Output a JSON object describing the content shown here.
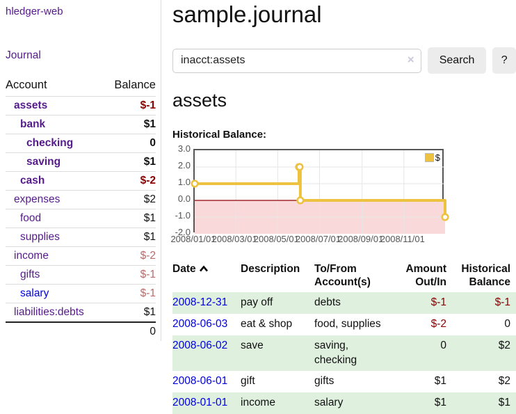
{
  "colors": {
    "accent_purple": "#551a8b",
    "link_blue": "#0000e0",
    "neg_strong": "#8b0000",
    "neg_muted": "#b96a6a",
    "row_green": "#dff0df",
    "chart_line": "#edc240",
    "chart_negative_fill": "#f9d9d9",
    "chart_zero_line": "#900000"
  },
  "sidebar": {
    "app_title": "hledger-web",
    "journal_link": "Journal",
    "accounts": {
      "col_account": "Account",
      "col_balance": "Balance",
      "rows": [
        {
          "name": "assets",
          "level": "1",
          "emph": "bold",
          "link": "visited",
          "balance": "$-1",
          "balance_tone": "neg"
        },
        {
          "name": "bank",
          "level": "2",
          "emph": "bold",
          "link": "visited",
          "balance": "$1",
          "balance_tone": ""
        },
        {
          "name": "checking",
          "level": "3",
          "emph": "bold",
          "link": "visited",
          "balance": "0",
          "balance_tone": ""
        },
        {
          "name": "saving",
          "level": "3",
          "emph": "bold",
          "link": "visited",
          "balance": "$1",
          "balance_tone": ""
        },
        {
          "name": "cash",
          "level": "2",
          "emph": "bold",
          "link": "visited",
          "balance": "$-2",
          "balance_tone": "neg"
        },
        {
          "name": "expenses",
          "level": "1",
          "emph": "",
          "link": "visited",
          "balance": "$2",
          "balance_tone": ""
        },
        {
          "name": "food",
          "level": "2",
          "emph": "",
          "link": "visited",
          "balance": "$1",
          "balance_tone": ""
        },
        {
          "name": "supplies",
          "level": "2",
          "emph": "",
          "link": "visited",
          "balance": "$1",
          "balance_tone": ""
        },
        {
          "name": "income",
          "level": "1",
          "emph": "",
          "link": "visited",
          "balance": "$-2",
          "balance_tone": "negmuted"
        },
        {
          "name": "gifts",
          "level": "2",
          "emph": "",
          "link": "visited",
          "balance": "$-1",
          "balance_tone": "negmuted"
        },
        {
          "name": "salary",
          "level": "2",
          "emph": "",
          "link": "new",
          "balance": "$-1",
          "balance_tone": "negmuted"
        },
        {
          "name": "liabilities:debts",
          "level": "1",
          "emph": "",
          "link": "visited",
          "balance": "$1",
          "balance_tone": ""
        }
      ],
      "total": "0"
    }
  },
  "header": {
    "title": "sample.journal"
  },
  "search": {
    "value": "inacct:assets",
    "clear_icon": "×",
    "button_label": "Search",
    "help_label": "?"
  },
  "account_page": {
    "heading": "assets",
    "chart_title": "Historical Balance:"
  },
  "chart_data": {
    "type": "line",
    "style": "step",
    "title": "Historical Balance:",
    "xlabel": "",
    "ylabel": "",
    "ylim": [
      -2,
      3
    ],
    "x_range": [
      "2008-01-01",
      "2008-12-31"
    ],
    "y_ticks": [
      "3.0",
      "2.0",
      "1.0",
      "0.0",
      "-1.0",
      "-2.0"
    ],
    "x_tick_labels": [
      "2008/01/01",
      "2008/03/01",
      "2008/05/01",
      "2008/07/01",
      "2008/09/01",
      "2008/11/01"
    ],
    "grid": true,
    "legend_position": "top-right",
    "negative_region_color": "#f9d9d9",
    "zero_line_color": "#900000",
    "series": [
      {
        "name": "$",
        "color": "#edc240",
        "points": [
          [
            "2008-01-01",
            1
          ],
          [
            "2008-06-01",
            2
          ],
          [
            "2008-06-02",
            2
          ],
          [
            "2008-06-03",
            0
          ],
          [
            "2008-12-31",
            -1
          ]
        ]
      }
    ]
  },
  "register": {
    "columns": {
      "date": "Date",
      "description": "Description",
      "account": "To/From Account(s)",
      "amount": "Amount Out/In",
      "balance": "Historical Balance"
    },
    "rows": [
      {
        "date": "2008-12-31",
        "description": "pay off",
        "account": "debts",
        "amount": "$-1",
        "amount_tone": "neg",
        "balance": "$-1",
        "balance_tone": "neg"
      },
      {
        "date": "2008-06-03",
        "description": "eat & shop",
        "account": "food, supplies",
        "amount": "$-2",
        "amount_tone": "neg",
        "balance": "0",
        "balance_tone": ""
      },
      {
        "date": "2008-06-02",
        "description": "save",
        "account": "saving, checking",
        "amount": "0",
        "amount_tone": "",
        "balance": "$2",
        "balance_tone": ""
      },
      {
        "date": "2008-06-01",
        "description": "gift",
        "account": "gifts",
        "amount": "$1",
        "amount_tone": "",
        "balance": "$2",
        "balance_tone": ""
      },
      {
        "date": "2008-01-01",
        "description": "income",
        "account": "salary",
        "amount": "$1",
        "amount_tone": "",
        "balance": "$1",
        "balance_tone": ""
      }
    ]
  }
}
